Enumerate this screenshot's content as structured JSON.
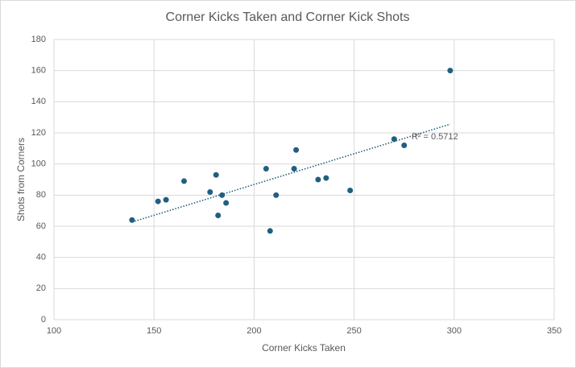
{
  "chart_data": {
    "type": "scatter",
    "title": "Corner Kicks Taken and Corner Kick Shots",
    "x_label": "Corner Kicks Taken",
    "y_label": "Shots from Corners",
    "series": [
      {
        "name": "Shots from Corners",
        "color": "#215f80",
        "x": [
          139,
          152,
          156,
          165,
          178,
          181,
          184,
          182,
          186,
          206,
          208,
          211,
          220,
          221,
          232,
          236,
          248,
          270,
          275,
          298
        ],
        "values": [
          64,
          76,
          77,
          89,
          82,
          93,
          80,
          67,
          75,
          97,
          57,
          80,
          97,
          109,
          90,
          91,
          83,
          116,
          112,
          160
        ]
      }
    ],
    "trendline": {
      "type": "linear",
      "color": "#215f80",
      "label": "R² = 0.5712"
    },
    "xlim": [
      100,
      350
    ],
    "xticks": [
      100,
      150,
      200,
      250,
      300,
      350
    ],
    "ylim": [
      0,
      180
    ],
    "yticks": [
      0,
      20,
      40,
      60,
      80,
      100,
      120,
      140,
      160,
      180
    ],
    "grid": true
  }
}
